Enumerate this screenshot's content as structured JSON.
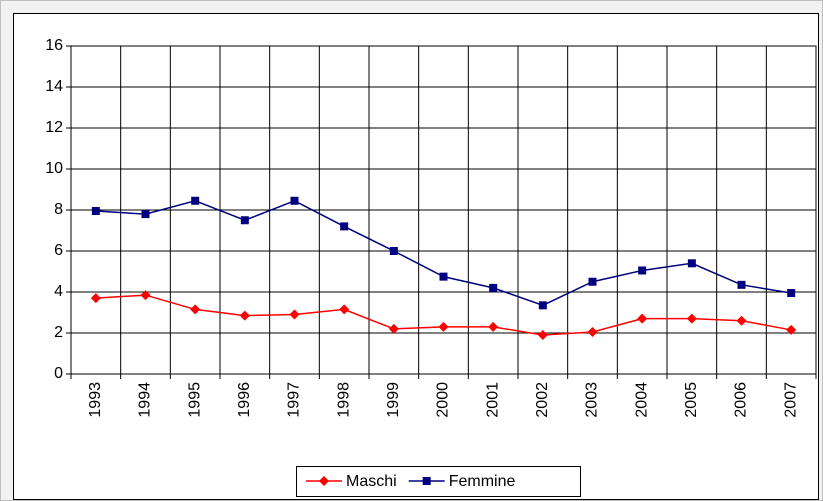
{
  "chart_data": {
    "type": "line",
    "categories": [
      "1993",
      "1994",
      "1995",
      "1996",
      "1997",
      "1998",
      "1999",
      "2000",
      "2001",
      "2002",
      "2003",
      "2004",
      "2005",
      "2006",
      "2007"
    ],
    "series": [
      {
        "name": "Maschi",
        "color": "#ff0000",
        "marker": "diamond",
        "values": [
          3.7,
          3.85,
          3.15,
          2.85,
          2.9,
          3.15,
          2.2,
          2.3,
          2.3,
          1.9,
          2.05,
          2.7,
          2.7,
          2.6,
          2.15
        ]
      },
      {
        "name": "Femmine",
        "color": "#000080",
        "marker": "square",
        "values": [
          7.95,
          7.8,
          8.45,
          7.5,
          8.45,
          7.2,
          6.0,
          4.75,
          4.2,
          3.35,
          4.5,
          5.05,
          5.4,
          4.35,
          3.95
        ]
      }
    ],
    "ylim": [
      0,
      16
    ],
    "yticks": [
      0,
      2,
      4,
      6,
      8,
      10,
      12,
      14,
      16
    ],
    "grid": true,
    "legend": "bottom"
  }
}
